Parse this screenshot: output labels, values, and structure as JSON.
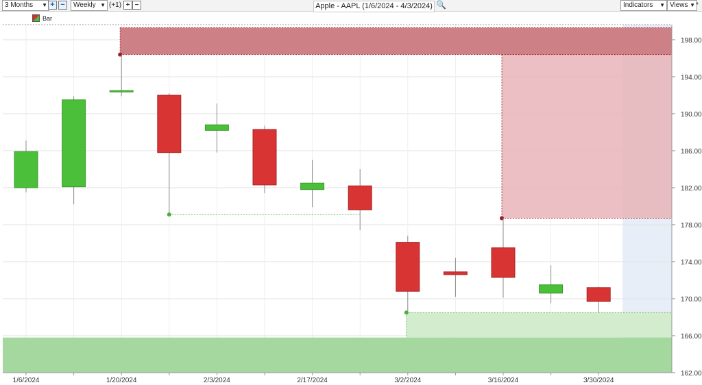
{
  "toolbar": {
    "period": "3 Months",
    "interval": "Weekly",
    "offset": "(+1)",
    "title": "Apple - AAPL (1/6/2024 - 4/3/2024)",
    "indicators": "Indicators",
    "views": "Views",
    "star": "*"
  },
  "legend": {
    "label": "Bar"
  },
  "colors": {
    "up": "#4cbf3a",
    "down": "#d83434",
    "supply": "#cd8186",
    "demand": "#a5d89e"
  },
  "chart_data": {
    "type": "candlestick",
    "title": "Apple - AAPL (1/6/2024 - 4/3/2024)",
    "ylim": [
      162,
      200
    ],
    "y_ticks": [
      "198.00",
      "194.00",
      "190.00",
      "186.00",
      "182.00",
      "178.00",
      "174.00",
      "170.00",
      "166.00",
      "162.00"
    ],
    "x_tick_labels": [
      "1/6/2024",
      "1/20/2024",
      "2/3/2024",
      "2/17/2024",
      "3/2/2024",
      "3/16/2024",
      "3/30/2024"
    ],
    "candles": [
      {
        "date": "1/6/2024",
        "open": 182.0,
        "high": 187.1,
        "low": 181.5,
        "close": 185.9
      },
      {
        "date": "1/13/2024",
        "open": 182.1,
        "high": 191.9,
        "low": 180.2,
        "close": 191.5
      },
      {
        "date": "1/20/2024",
        "open": 192.4,
        "high": 196.4,
        "low": 191.9,
        "close": 192.5
      },
      {
        "date": "1/27/2024",
        "open": 192.0,
        "high": 192.2,
        "low": 179.1,
        "close": 185.8
      },
      {
        "date": "2/3/2024",
        "open": 188.2,
        "high": 191.1,
        "low": 185.8,
        "close": 188.8
      },
      {
        "date": "2/10/2024",
        "open": 188.3,
        "high": 188.7,
        "low": 181.4,
        "close": 182.3
      },
      {
        "date": "2/17/2024",
        "open": 181.8,
        "high": 185.0,
        "low": 179.9,
        "close": 182.5
      },
      {
        "date": "2/24/2024",
        "open": 182.2,
        "high": 184.0,
        "low": 177.4,
        "close": 179.6
      },
      {
        "date": "3/2/2024",
        "open": 176.1,
        "high": 176.8,
        "low": 168.5,
        "close": 170.8
      },
      {
        "date": "3/9/2024",
        "open": 172.9,
        "high": 174.4,
        "low": 170.2,
        "close": 172.6
      },
      {
        "date": "3/16/2024",
        "open": 175.5,
        "high": 178.7,
        "low": 170.1,
        "close": 172.3
      },
      {
        "date": "3/23/2024",
        "open": 170.6,
        "high": 173.6,
        "low": 169.5,
        "close": 171.5
      },
      {
        "date": "3/30/2024",
        "open": 171.2,
        "high": 171.3,
        "low": 168.5,
        "close": 169.7
      }
    ],
    "zones": [
      {
        "kind": "supply",
        "from": "1/20/2024",
        "top": 199.3,
        "bottom": 196.4
      },
      {
        "kind": "supply",
        "from": "3/16/2024",
        "top": 196.4,
        "bottom": 178.7
      },
      {
        "kind": "demand",
        "from": "3/2/2024",
        "top": 168.5,
        "bottom": 165.8
      },
      {
        "kind": "demand",
        "from": "1/6/2024",
        "top": 165.8,
        "bottom": 162.0
      }
    ],
    "lines": [
      {
        "from": "1/27/2024",
        "to": "2/24/2024",
        "value": 179.1
      }
    ],
    "grid": true,
    "legend": "top-left"
  }
}
